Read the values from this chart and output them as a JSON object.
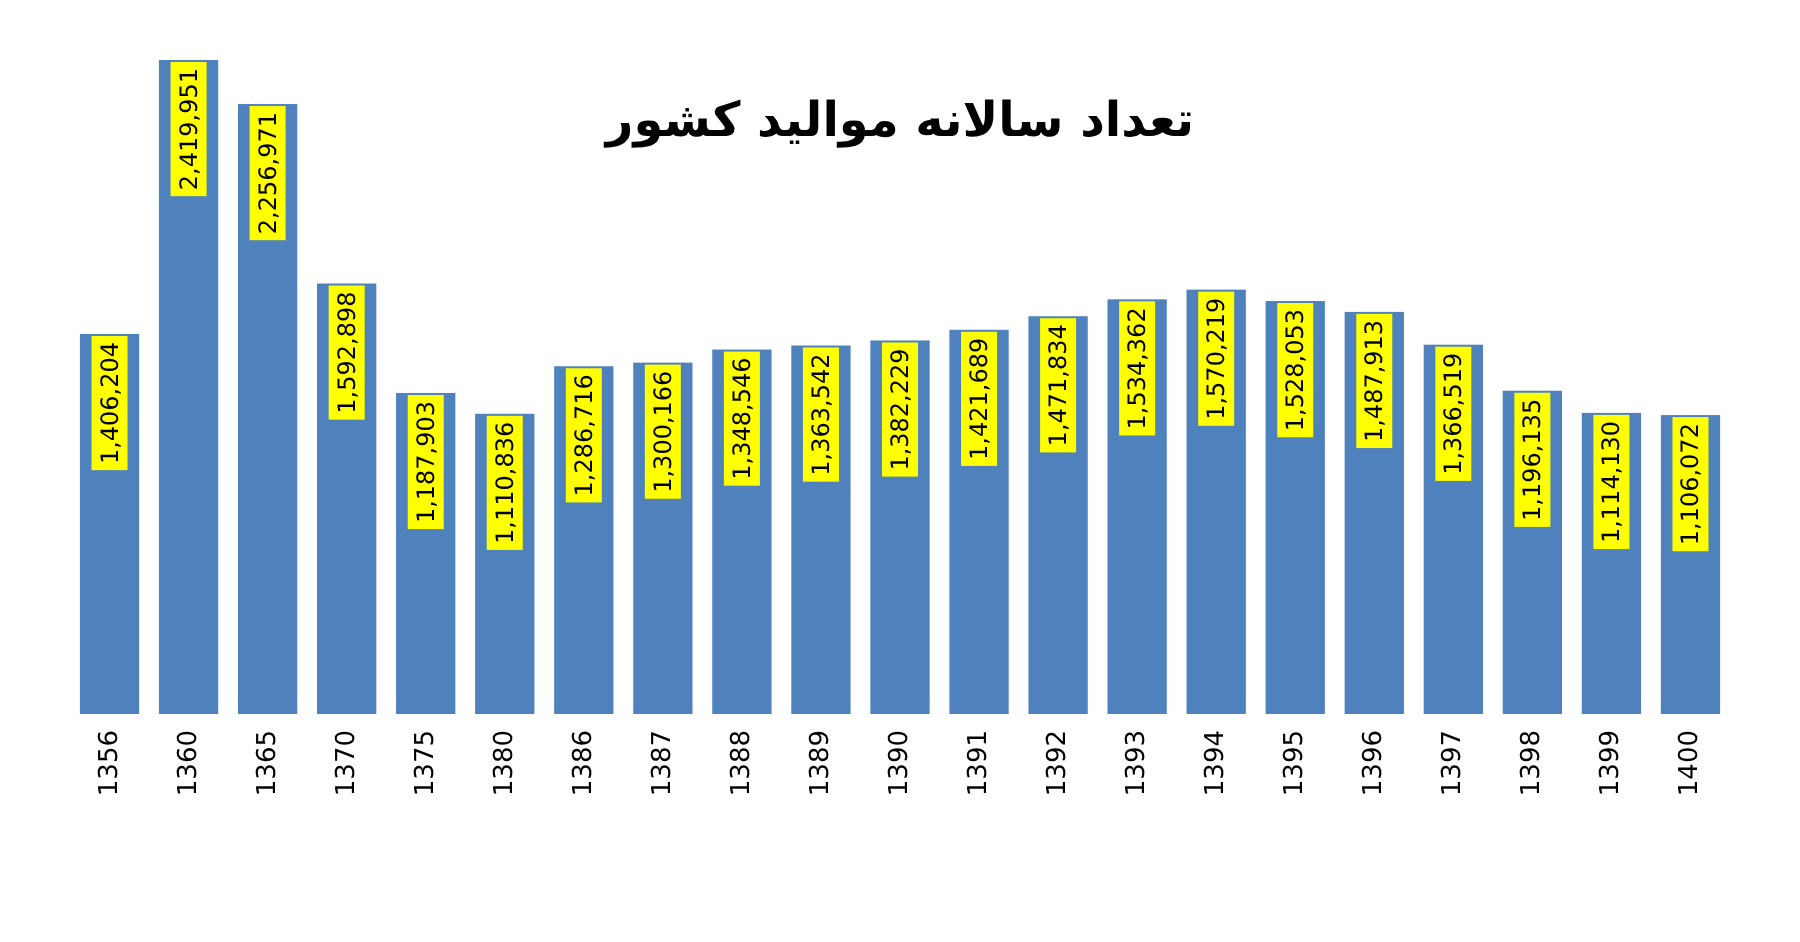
{
  "chart_data": {
    "type": "bar",
    "title": "تعداد سالانه موالید کشور",
    "categories": [
      "1356",
      "1360",
      "1365",
      "1370",
      "1375",
      "1380",
      "1386",
      "1387",
      "1388",
      "1389",
      "1390",
      "1391",
      "1392",
      "1393",
      "1394",
      "1395",
      "1396",
      "1397",
      "1398",
      "1399",
      "1400"
    ],
    "values": [
      1406204,
      2419951,
      2256971,
      1592898,
      1187903,
      1110836,
      1286716,
      1300166,
      1348546,
      1363542,
      1382229,
      1421689,
      1471834,
      1534362,
      1570219,
      1528053,
      1487913,
      1366519,
      1196135,
      1114130,
      1106072
    ],
    "value_labels": [
      "1,406,204",
      "2,419,951",
      "2,256,971",
      "1,592,898",
      "1,187,903",
      "1,110,836",
      "1,286,716",
      "1,300,166",
      "1,348,546",
      "1,363,542",
      "1,382,229",
      "1,421,689",
      "1,471,834",
      "1,534,362",
      "1,570,219",
      "1,528,053",
      "1,487,913",
      "1,366,519",
      "1,196,135",
      "1,114,130",
      "1,106,072"
    ],
    "color": "#4f81bd"
  }
}
